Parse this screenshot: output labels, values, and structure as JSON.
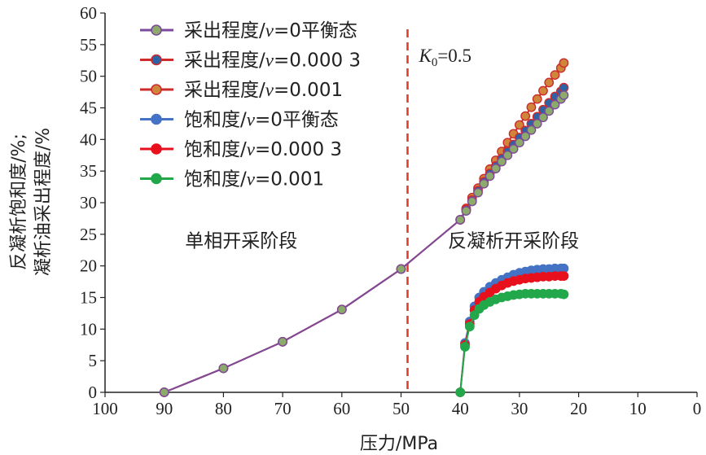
{
  "chart_data": {
    "type": "line",
    "xlabel": "压力/MPa",
    "ylabel_line1": "反凝析饱和度/%;",
    "ylabel_line2": "凝析油采出程度/%",
    "xlim": [
      100,
      0
    ],
    "ylim": [
      0,
      60
    ],
    "x_ticks": [
      "100",
      "90",
      "80",
      "70",
      "60",
      "50",
      "40",
      "30",
      "20",
      "10",
      "0"
    ],
    "y_ticks": [
      "0",
      "5",
      "10",
      "15",
      "20",
      "25",
      "30",
      "35",
      "40",
      "45",
      "50",
      "55",
      "60"
    ],
    "vline": {
      "x": 48.9,
      "label_main": "K",
      "label_sub": "0",
      "label_rest": "=0.5",
      "color": "#d93b2b"
    },
    "annotations": [
      {
        "text": "单相开采阶段",
        "x": 77,
        "y": 24
      },
      {
        "text": "反凝析开采阶段",
        "x": 31,
        "y": 24
      }
    ],
    "series": [
      {
        "name": "采出程度/v=0平衡态",
        "fill": "#8caa6a",
        "edge": "#7b4a9a",
        "x": [
          90,
          80,
          70,
          60,
          50,
          40,
          39,
          38,
          37,
          36,
          35,
          34,
          33,
          32,
          31,
          30,
          29,
          28,
          27,
          26,
          25,
          24,
          23,
          22.5
        ],
        "y": [
          0,
          3.8,
          8.0,
          13.1,
          19.5,
          27.3,
          28.7,
          30.2,
          31.6,
          33.0,
          34.2,
          35.4,
          36.5,
          37.5,
          38.5,
          39.5,
          40.5,
          41.5,
          42.5,
          43.5,
          44.5,
          45.5,
          46.4,
          47.0
        ]
      },
      {
        "name": "采出程度/v=0.000 3",
        "fill": "#2c62a6",
        "edge": "#d02a2a",
        "x": [
          90,
          80,
          70,
          60,
          50,
          40,
          39,
          38,
          37,
          36,
          35,
          34,
          33,
          32,
          31,
          30,
          29,
          28,
          27,
          26,
          25,
          24,
          23,
          22.5
        ],
        "y": [
          0,
          3.8,
          8.0,
          13.1,
          19.5,
          27.3,
          28.9,
          30.4,
          31.9,
          33.3,
          34.6,
          35.8,
          37.0,
          38.1,
          39.2,
          40.3,
          41.4,
          42.5,
          43.6,
          44.7,
          45.8,
          46.8,
          47.6,
          48.2
        ]
      },
      {
        "name": "采出程度/v=0.001",
        "fill": "#d0863a",
        "edge": "#cc2b2b",
        "x": [
          90,
          80,
          70,
          60,
          50,
          40,
          39,
          38,
          37,
          36,
          35,
          34,
          33,
          32,
          31,
          30,
          29,
          28,
          27,
          26,
          25,
          24,
          23,
          22.5
        ],
        "y": [
          0,
          3.8,
          8.0,
          13.1,
          19.5,
          27.3,
          29.1,
          30.8,
          32.3,
          33.8,
          35.3,
          36.7,
          38.1,
          39.5,
          40.9,
          42.3,
          43.7,
          45.1,
          46.4,
          47.7,
          49.0,
          50.2,
          51.3,
          52.1
        ]
      },
      {
        "name": "饱和度/v=0平衡态",
        "fill": "#4472c4",
        "edge": "#4472c4",
        "x": [
          40,
          39.2,
          38.4,
          37.6,
          36.8,
          36,
          35,
          34,
          33,
          32,
          31,
          30,
          29,
          28,
          27,
          26,
          25,
          24,
          23,
          22.5
        ],
        "y": [
          0,
          7.8,
          11.2,
          13.6,
          15.0,
          15.9,
          16.7,
          17.3,
          17.8,
          18.2,
          18.6,
          18.9,
          19.1,
          19.3,
          19.4,
          19.5,
          19.5,
          19.6,
          19.6,
          19.6
        ]
      },
      {
        "name": "饱和度/v=0.000 3",
        "fill": "#e8101c",
        "edge": "#e8101c",
        "x": [
          40,
          39.2,
          38.4,
          37.6,
          36.8,
          36,
          35,
          34,
          33,
          32,
          31,
          30,
          29,
          28,
          27,
          26,
          25,
          24,
          23,
          22.5
        ],
        "y": [
          0,
          7.5,
          10.8,
          13.0,
          14.3,
          15.1,
          15.8,
          16.4,
          16.9,
          17.3,
          17.6,
          17.8,
          18.0,
          18.1,
          18.2,
          18.3,
          18.3,
          18.4,
          18.4,
          18.4
        ]
      },
      {
        "name": "饱和度/v=0.001",
        "fill": "#22a84a",
        "edge": "#22a84a",
        "x": [
          40,
          39.2,
          38.4,
          37.6,
          36.8,
          36,
          35,
          34,
          33,
          32,
          31,
          30,
          29,
          28,
          27,
          26,
          25,
          24,
          23,
          22.5
        ],
        "y": [
          0,
          7.2,
          10.4,
          12.2,
          13.2,
          13.8,
          14.3,
          14.7,
          15.0,
          15.2,
          15.4,
          15.5,
          15.6,
          15.6,
          15.6,
          15.6,
          15.6,
          15.6,
          15.6,
          15.5
        ]
      }
    ],
    "legend_position": "top-left",
    "grid": false
  }
}
